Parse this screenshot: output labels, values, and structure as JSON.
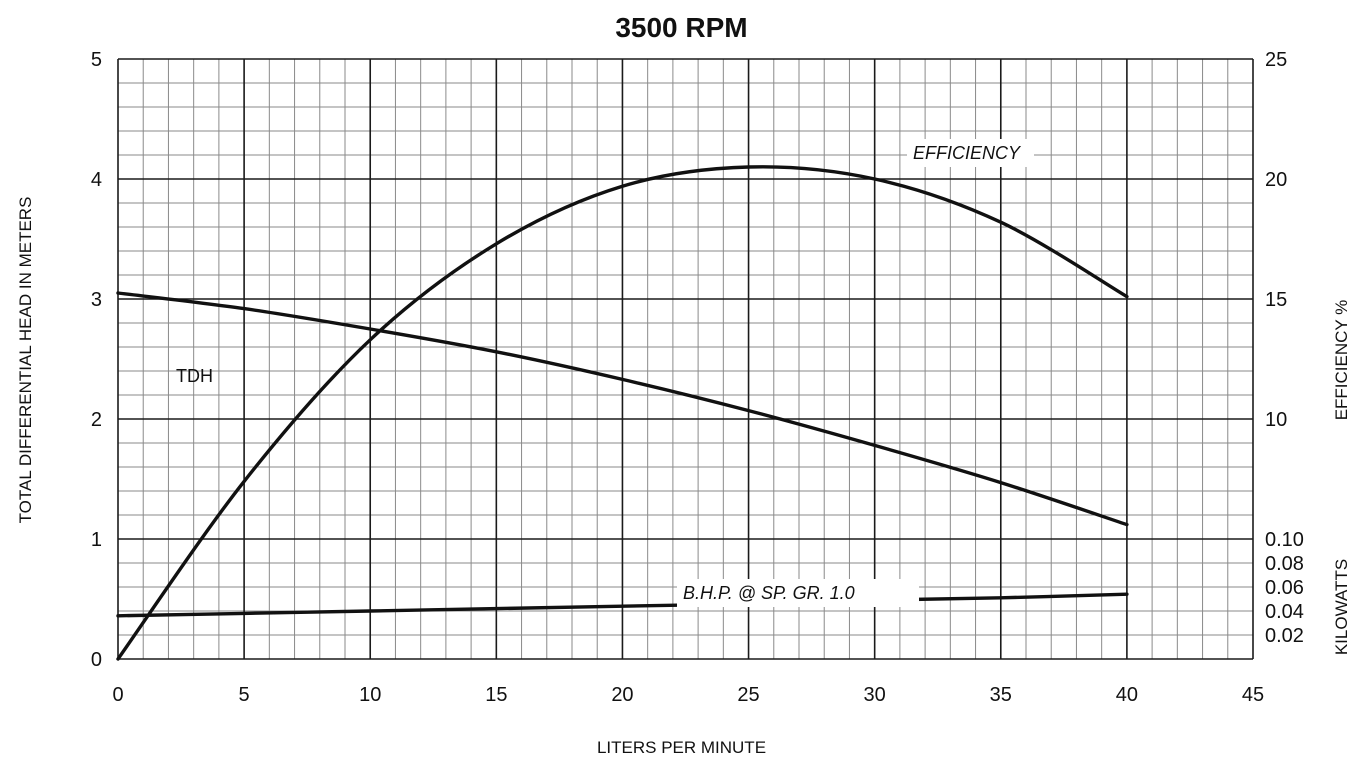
{
  "chart_data": {
    "type": "line",
    "title": "3500 RPM",
    "xlabel": "LITERS PER MINUTE",
    "ylabel_left": "TOTAL DIFFERENTIAL HEAD IN METERS",
    "ylabel_right_efficiency": "EFFICIENCY %",
    "ylabel_right_power": "KILOWATTS",
    "xlim": [
      0,
      45
    ],
    "ylim_left": [
      0,
      5
    ],
    "ylim_efficiency": [
      0,
      25
    ],
    "x_ticks": [
      "0",
      "5",
      "10",
      "15",
      "20",
      "25",
      "30",
      "35",
      "40",
      "45"
    ],
    "y_left_ticks": [
      "0",
      "1",
      "2",
      "3",
      "4",
      "5"
    ],
    "y_efficiency_ticks": [
      "10",
      "15",
      "20",
      "25"
    ],
    "y_power_ticks": [
      "0.02",
      "0.04",
      "0.06",
      "0.08",
      "0.10"
    ],
    "grid": true,
    "series": [
      {
        "name": "TDH",
        "axis": "head_m",
        "x": [
          0,
          5,
          10,
          15,
          20,
          25,
          30,
          35,
          40
        ],
        "values": [
          3.05,
          2.92,
          2.75,
          2.56,
          2.33,
          2.07,
          1.78,
          1.47,
          1.12
        ]
      },
      {
        "name": "EFFICIENCY",
        "axis": "efficiency_pct",
        "x": [
          0,
          5,
          10,
          15,
          20,
          25,
          30,
          35,
          40
        ],
        "values": [
          0,
          7.4,
          13.3,
          17.3,
          19.7,
          20.5,
          20.0,
          18.2,
          15.1
        ]
      },
      {
        "name": "B.H.P. @ SP. GR. 1.0",
        "axis": "kilowatts",
        "x": [
          0,
          5,
          10,
          15,
          20,
          25,
          30,
          35,
          40
        ],
        "values": [
          0.036,
          0.038,
          0.04,
          0.042,
          0.044,
          0.046,
          0.049,
          0.051,
          0.054
        ]
      }
    ]
  }
}
